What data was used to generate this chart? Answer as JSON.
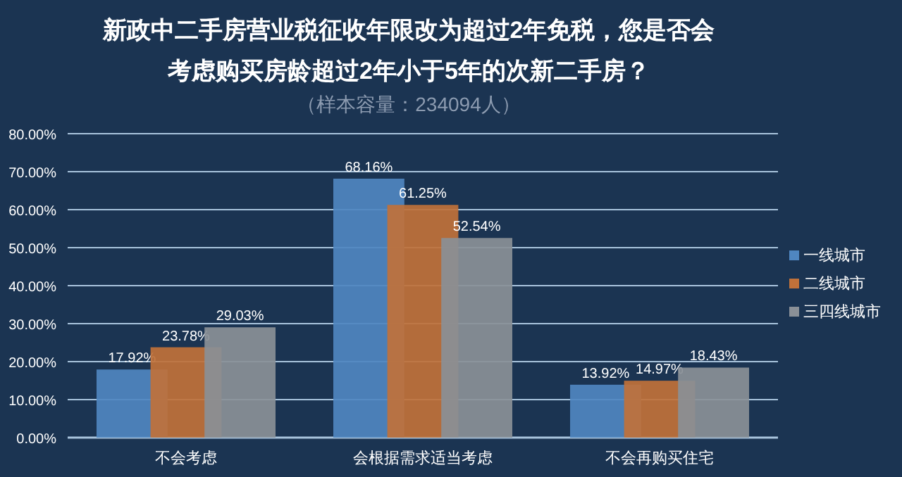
{
  "chart_data": {
    "type": "bar",
    "title": "新政中二手房营业税征收年限改为超过2年免税，您是否会考虑购买房龄超过2年小于5年的次新二手房？",
    "subtitle": "（样本容量：234094人）",
    "categories": [
      "不会考虑",
      "会根据需求适当考虑",
      "不会再购买住宅"
    ],
    "series": [
      {
        "name": "一线城市",
        "color": "#4f86c0",
        "values": [
          17.92,
          68.16,
          13.92
        ],
        "value_labels": [
          "17.92%",
          "68.16%",
          "13.92%"
        ]
      },
      {
        "name": "二线城市",
        "color": "#c0713a",
        "values": [
          23.78,
          61.25,
          14.97
        ],
        "value_labels": [
          "23.78%",
          "61.25%",
          "14.97%"
        ]
      },
      {
        "name": "三四线城市",
        "color": "#8a9097",
        "values": [
          29.03,
          52.54,
          18.43
        ],
        "value_labels": [
          "29.03%",
          "52.54%",
          "18.43%"
        ]
      }
    ],
    "ylim": [
      0,
      80
    ],
    "yticks": [
      {
        "value": 0,
        "label": "0.00%"
      },
      {
        "value": 10,
        "label": "10.00%"
      },
      {
        "value": 20,
        "label": "20.00%"
      },
      {
        "value": 30,
        "label": "30.00%"
      },
      {
        "value": 40,
        "label": "40.00%"
      },
      {
        "value": 50,
        "label": "50.00%"
      },
      {
        "value": 60,
        "label": "60.00%"
      },
      {
        "value": 70,
        "label": "70.00%"
      },
      {
        "value": 80,
        "label": "80.00%"
      }
    ],
    "grid": "y",
    "legend": "right"
  }
}
